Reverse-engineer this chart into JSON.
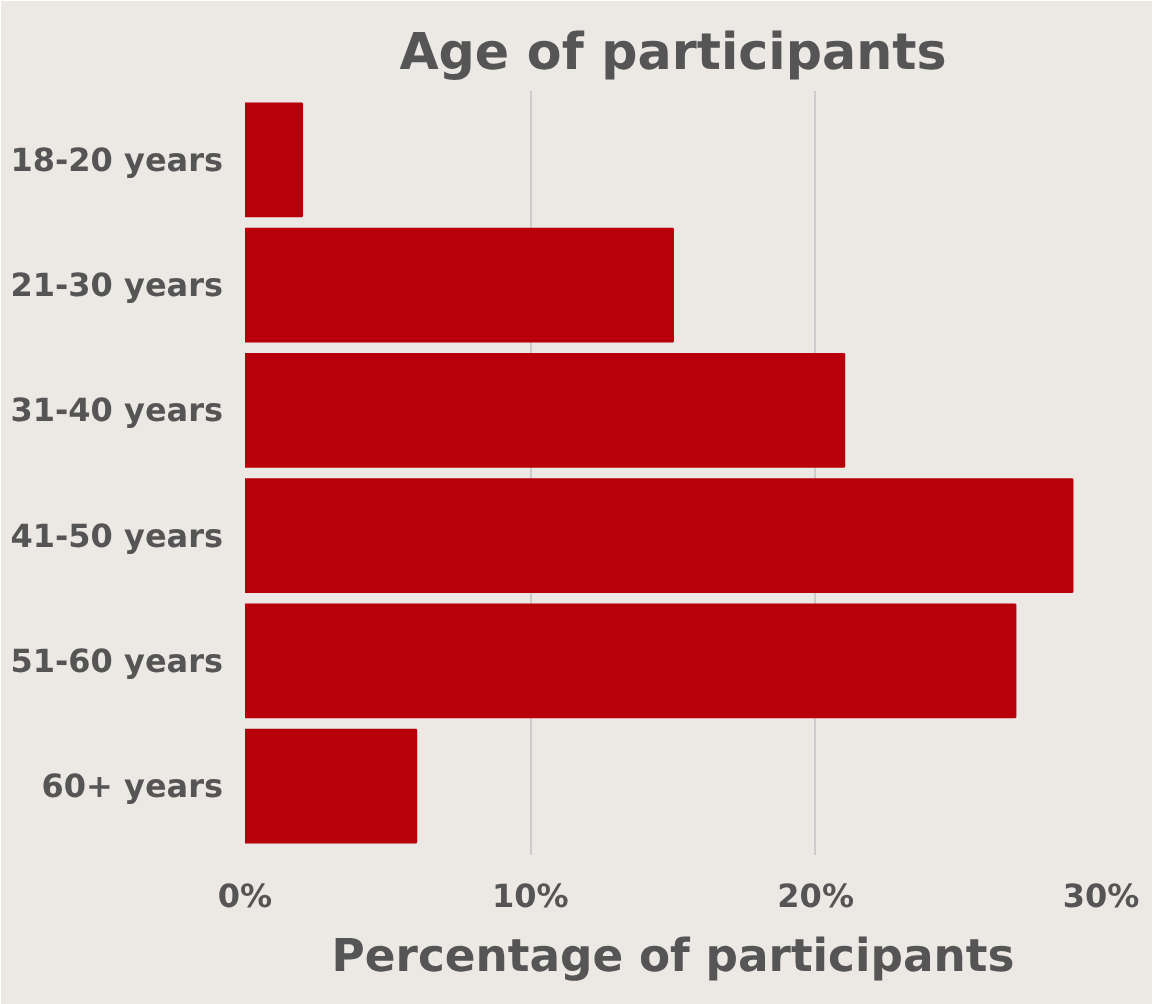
{
  "chart_data": {
    "type": "bar",
    "orientation": "horizontal",
    "title": "Age of participants",
    "xlabel": "Percentage of participants",
    "categories": [
      "18-20 years",
      "21-30 years",
      "31-40 years",
      "41-50 years",
      "51-60 years",
      "60+ years"
    ],
    "values": [
      2,
      15,
      21,
      29,
      27,
      6
    ],
    "color": "#b8000a",
    "xlim": [
      0,
      30
    ],
    "xticks": [
      {
        "value": 0,
        "label": "0%"
      },
      {
        "value": 10,
        "label": "10%"
      },
      {
        "value": 20,
        "label": "20%"
      },
      {
        "value": 30,
        "label": "30%"
      }
    ],
    "grid": "x"
  }
}
